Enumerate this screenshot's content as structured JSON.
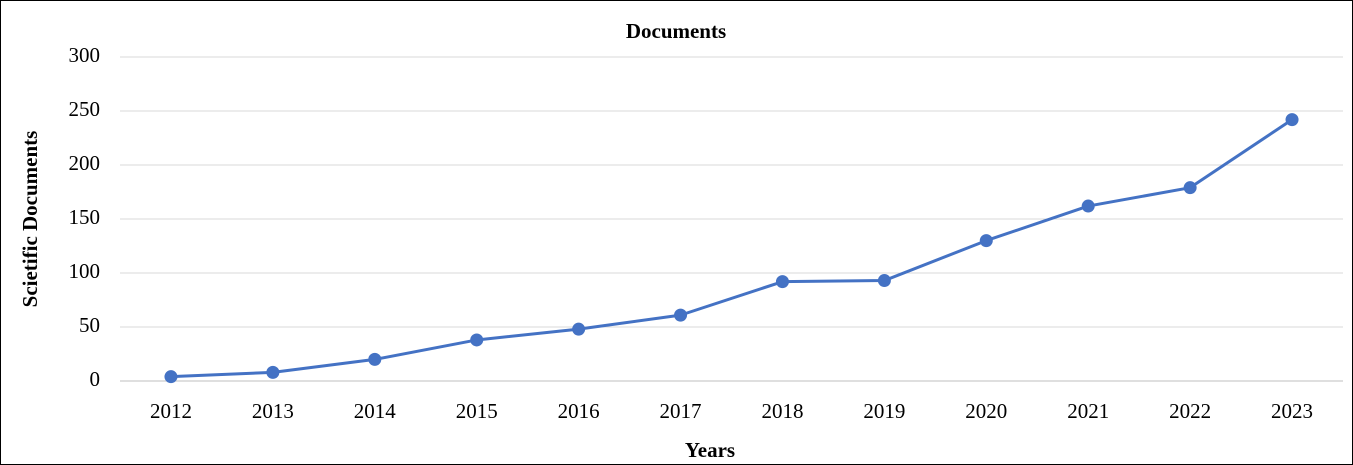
{
  "chart_data": {
    "type": "line",
    "title": "Documents",
    "x_label": "Years",
    "y_label": "Scietific Documents",
    "categories": [
      "2012",
      "2013",
      "2014",
      "2015",
      "2016",
      "2017",
      "2018",
      "2019",
      "2020",
      "2021",
      "2022",
      "2023"
    ],
    "series": [
      {
        "name": "Documents",
        "color": "#4472c4",
        "values": [
          4,
          8,
          20,
          38,
          48,
          61,
          92,
          93,
          130,
          162,
          179,
          242
        ]
      }
    ],
    "ylim": [
      0,
      300
    ],
    "yticks": [
      0,
      50,
      100,
      150,
      200,
      250,
      300
    ],
    "grid": true
  }
}
